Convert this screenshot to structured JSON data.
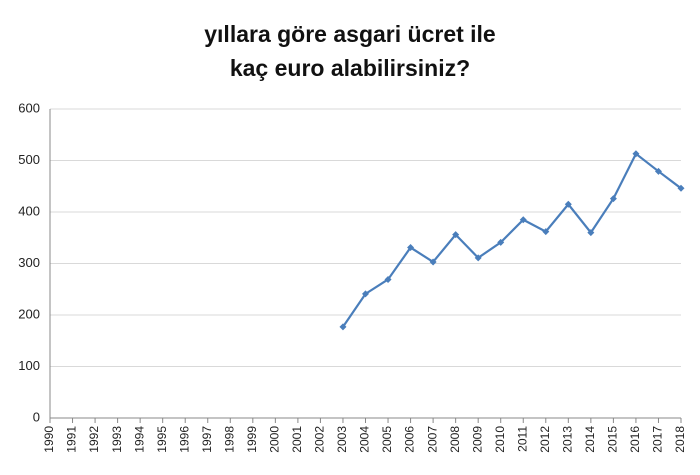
{
  "chart_data": {
    "type": "line",
    "title": [
      "yıllara göre asgari ücret ile",
      "kaç euro alabilirsiniz?"
    ],
    "categories": [
      "1990",
      "1991",
      "1992",
      "1993",
      "1994",
      "1995",
      "1996",
      "1997",
      "1998",
      "1999",
      "2000",
      "2001",
      "2002",
      "2003",
      "2004",
      "2005",
      "2006",
      "2007",
      "2008",
      "2009",
      "2010",
      "2011",
      "2012",
      "2013",
      "2014",
      "2015",
      "2016",
      "2017",
      "2018"
    ],
    "values": [
      null,
      null,
      null,
      null,
      null,
      null,
      null,
      null,
      null,
      null,
      null,
      null,
      null,
      177,
      241,
      269,
      331,
      303,
      356,
      311,
      341,
      385,
      362,
      415,
      360,
      426,
      513,
      479,
      446
    ],
    "color": "#4a7ebb",
    "ylim": [
      0,
      600
    ],
    "yticks": [
      0,
      100,
      200,
      300,
      400,
      500,
      600
    ],
    "grid": true
  }
}
